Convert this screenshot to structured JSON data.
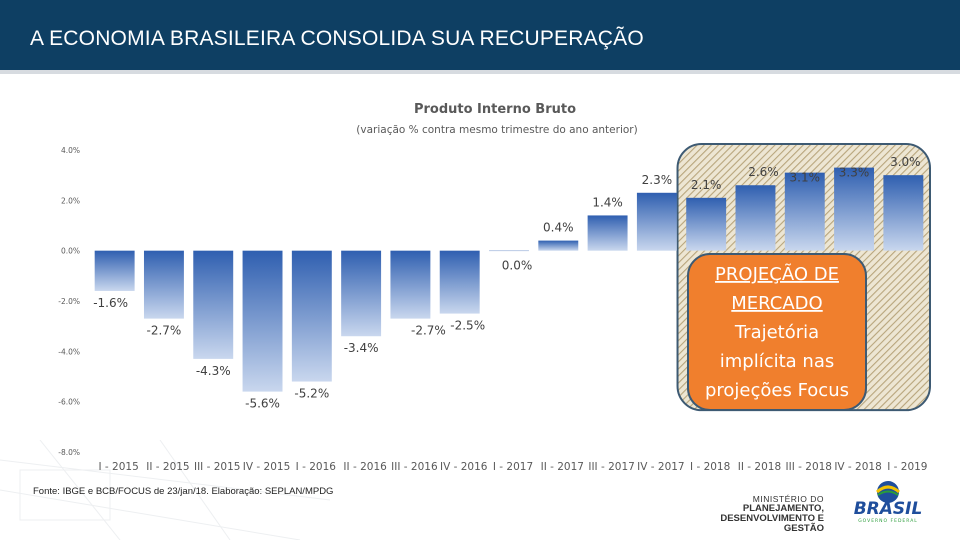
{
  "header": {
    "title": "A ECONOMIA BRASILEIRA CONSOLIDA SUA RECUPERAÇÃO"
  },
  "footer": {
    "source": "Fonte: IBGE e BCB/FOCUS de 23/jan/18. Elaboração: SEPLAN/MPDG",
    "ministry_line1": "MINISTÉRIO DO",
    "ministry_line2": "PLANEJAMENTO,",
    "ministry_line3": "DESENVOLVIMENTO E GESTÃO",
    "logo_text": "BRASIL",
    "logo_subtext": "GOVERNO FEDERAL"
  },
  "colors": {
    "header_bg": "#0e3f63",
    "bar_top": "#2f5fb0",
    "bar_bottom": "#c9d7ee",
    "callout_fill": "#f07f2d",
    "hatch": "#b8a57c",
    "hatch_bg": "#ede6d3",
    "outline": "#3d5a73"
  },
  "chart_data": {
    "type": "bar",
    "title": "Produto Interno Bruto",
    "subtitle": "(variação % contra mesmo trimestre do ano anterior)",
    "categories": [
      "I - 2015",
      "II - 2015",
      "III - 2015",
      "IV - 2015",
      "I - 2016",
      "II - 2016",
      "III - 2016",
      "IV - 2016",
      "I - 2017",
      "II - 2017",
      "III - 2017",
      "IV - 2017",
      "I - 2018",
      "II - 2018",
      "III - 2018",
      "IV - 2018",
      "I - 2019"
    ],
    "values": [
      -1.6,
      -2.7,
      -4.3,
      -5.6,
      -5.2,
      -3.4,
      -2.7,
      -2.5,
      0.0,
      0.4,
      1.4,
      2.3,
      2.1,
      2.6,
      3.1,
      3.3,
      3.0
    ],
    "data_labels": [
      "-1.6%",
      "-2.7%",
      "-4.3%",
      "-5.6%",
      "-5.2%",
      "-3.4%",
      "-2.7%",
      "-2.5%",
      "0.0%",
      "0.4%",
      "1.4%",
      "2.3%",
      "2.1%",
      "2.6%",
      "3.1%",
      "3.3%",
      "3.0%"
    ],
    "y_ticks": [
      4,
      2,
      0,
      -2,
      -4,
      -6,
      -8
    ],
    "y_tick_labels": [
      "4.0%",
      "2.0%",
      "0.0%",
      "-2.0%",
      "-4.0%",
      "-6.0%",
      "-8.0%"
    ],
    "ylim": [
      -8,
      4
    ],
    "grid": false,
    "legend": "none",
    "projection_from_index": 12,
    "annotation": {
      "line1": "PROJEÇÃO DE",
      "line2": "MERCADO",
      "line3": "Trajetória",
      "line4": "implícita nas",
      "line5": "projeções Focus"
    }
  }
}
